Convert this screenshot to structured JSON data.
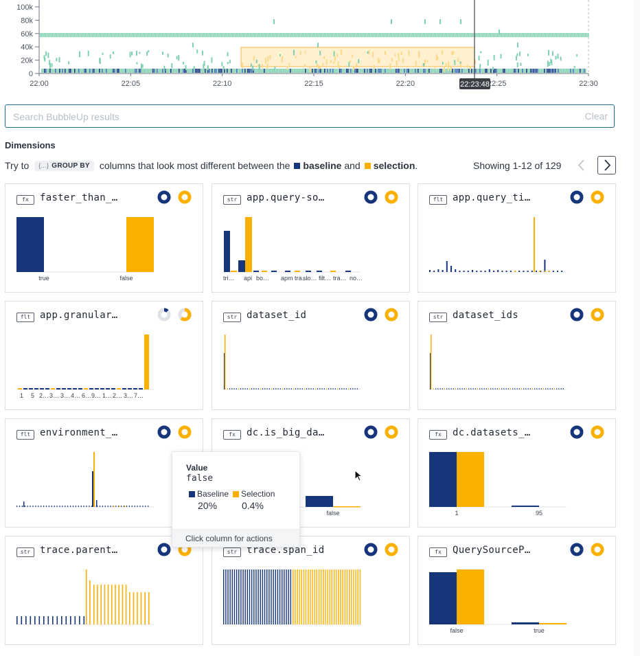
{
  "colors": {
    "baseline": "#17357a",
    "selection": "#fbb000",
    "heat_teal": "#7fcfb0",
    "heat_light": "#ffe3a8",
    "accent": "#1f6f8b"
  },
  "heatmap": {
    "y_ticks": [
      "100k",
      "80k",
      "60k",
      "40k",
      "20k",
      "0"
    ],
    "x_ticks": [
      "22:00",
      "22:05",
      "22:10",
      "22:15",
      "22:20",
      "22:25",
      "22:30"
    ],
    "marker_label": "22:23:48"
  },
  "search": {
    "placeholder": "Search BubbleUp results",
    "clear_label": "Clear"
  },
  "dimensions": {
    "title": "Dimensions",
    "hint": {
      "try_to": "Try to",
      "group_by": "GROUP BY",
      "group_by_icon": "{...}",
      "middle": "columns that look most different between the",
      "baseline": "baseline",
      "and": "and",
      "selection": "selection",
      "period": "."
    },
    "showing": "Showing 1-12 of 129",
    "prev_icon": "chevron-left-icon",
    "next_icon": "chevron-right-icon"
  },
  "cards": [
    {
      "type": "fx",
      "title": "faster_than_…",
      "labels": [
        "true",
        "false"
      ]
    },
    {
      "type": "str",
      "title": "app.query-so…",
      "labels": [
        "tri…",
        "api",
        "bo…",
        "apm tra…",
        "slo…",
        "filt…",
        "tra…",
        "no…"
      ]
    },
    {
      "type": "flt",
      "title": "app.query_ti…",
      "labels": []
    },
    {
      "type": "flt",
      "title": "app.granular…",
      "labels": [
        "1",
        "5",
        "2…",
        "3…",
        "3…",
        "4…",
        "6…",
        "9…",
        "1…",
        "2…",
        "3…",
        "7…"
      ]
    },
    {
      "type": "str",
      "title": "dataset_id",
      "labels": []
    },
    {
      "type": "str",
      "title": "dataset_ids",
      "labels": []
    },
    {
      "type": "flt",
      "title": "environment_…",
      "labels": []
    },
    {
      "type": "fx",
      "title": "dc.is_big_da…",
      "labels": [
        "false"
      ]
    },
    {
      "type": "fx",
      "title": "dc.datasets_…",
      "labels": [
        "1",
        "95"
      ]
    },
    {
      "type": "str",
      "title": "trace.parent…",
      "labels": []
    },
    {
      "type": "str",
      "title": "trace.span_id",
      "labels": []
    },
    {
      "type": "fx",
      "title": "QuerySourceP…",
      "labels": [
        "false",
        "true"
      ]
    }
  ],
  "tooltip": {
    "label": "Value",
    "value": "false",
    "baseline_label": "Baseline",
    "selection_label": "Selection",
    "baseline_pct": "20%",
    "selection_pct": "0.4%",
    "footer": "Click column for actions"
  }
}
